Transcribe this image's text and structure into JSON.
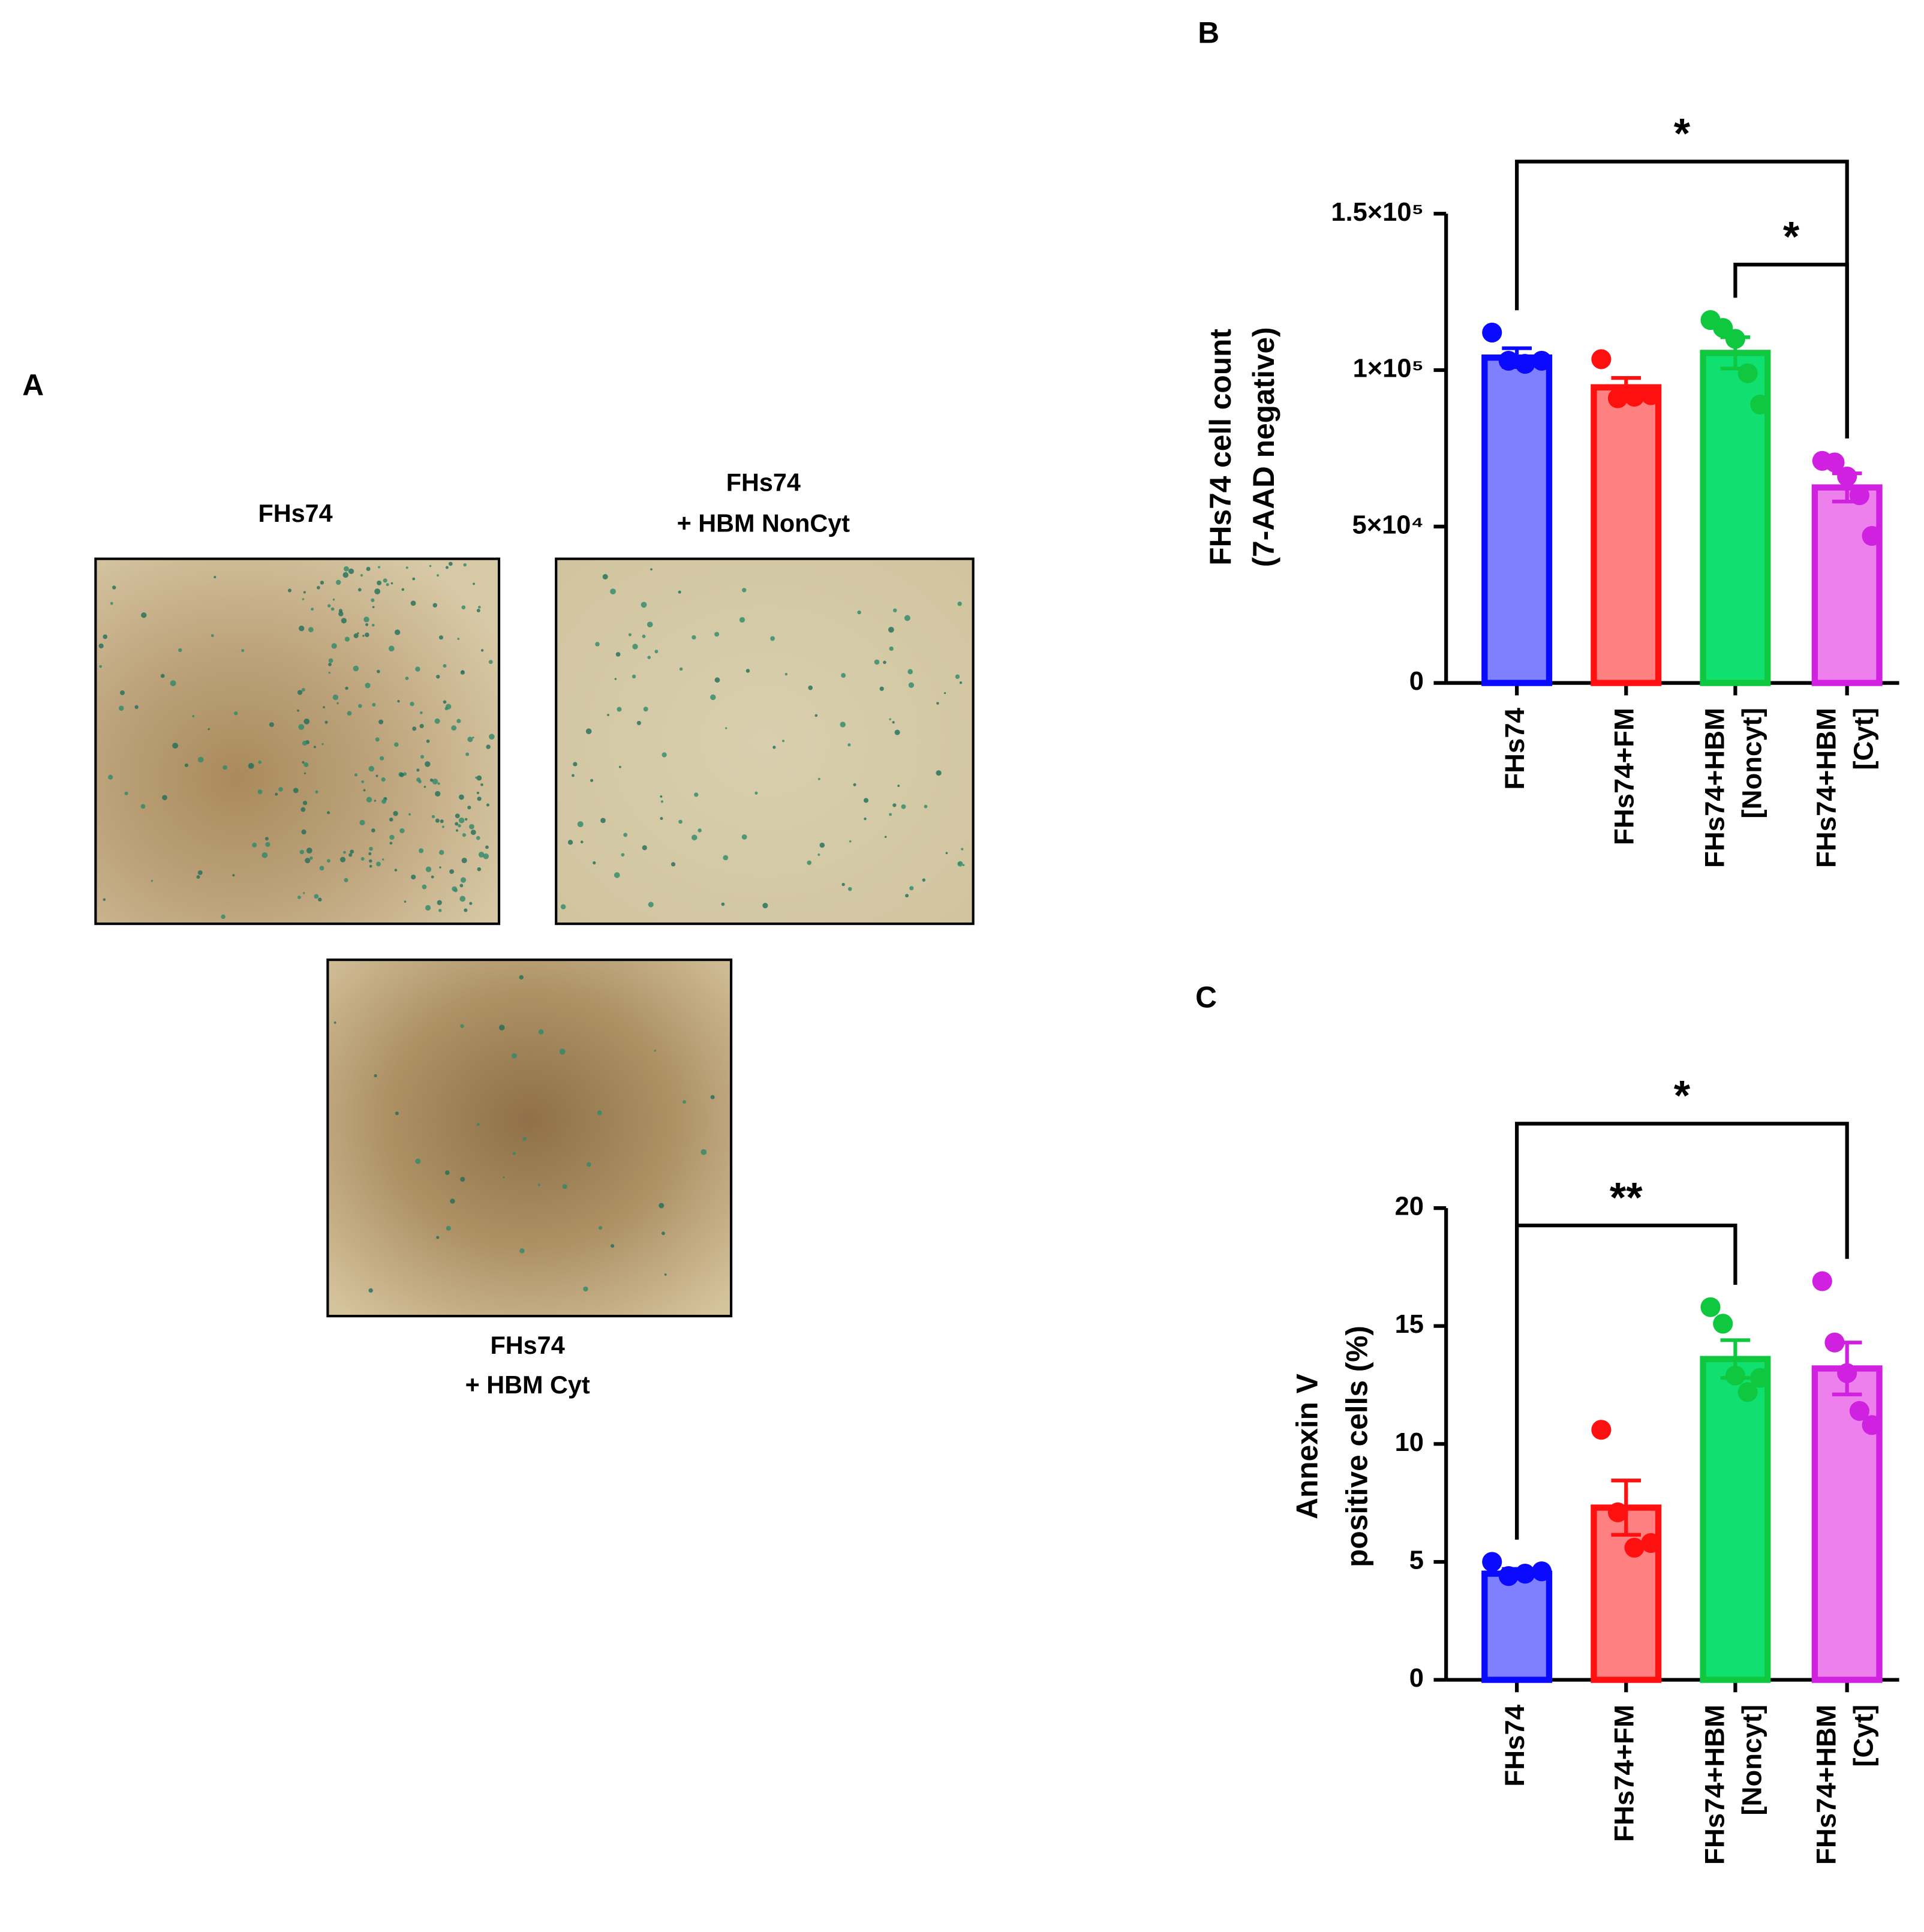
{
  "panel_a": {
    "label": "A",
    "captions": [
      [
        "FHs74"
      ],
      [
        "FHs74",
        "+ HBM NonCyt"
      ],
      [
        "FHs74",
        "+ HBM Cyt"
      ]
    ]
  },
  "chart_data": [
    {
      "type": "bar",
      "panel_label": "B",
      "ylabel": [
        "FHs74 cell count",
        "(7-AAD negative)"
      ],
      "categories": [
        [
          "FHs74"
        ],
        [
          "FHs74+FM"
        ],
        [
          "FHs74+HBM",
          "[Noncyt]"
        ],
        [
          "FHs74+HBM",
          "[Cyt]"
        ]
      ],
      "values": [
        104000,
        94500,
        105500,
        62500
      ],
      "errors": [
        3000,
        3000,
        5000,
        4500
      ],
      "points": [
        [
          112000,
          103000,
          102000,
          103000
        ],
        [
          103500,
          91000,
          91500,
          92000
        ],
        [
          116000,
          113500,
          110000,
          99000,
          89000
        ],
        [
          71000,
          70500,
          66000,
          60000,
          47000
        ]
      ],
      "colors": [
        "#0a0aff",
        "#ff1010",
        "#10c840",
        "#d020e0"
      ],
      "fill_colors": [
        "#7f80ff",
        "#ff8080",
        "#10e070",
        "#ee80ee"
      ],
      "ylim": [
        0,
        150000
      ],
      "yticks": [
        0,
        {
          "value": 50000,
          "label": "5×10⁴"
        },
        {
          "value": 100000,
          "label": "1×10⁵"
        },
        {
          "value": 150000,
          "label": "1.5×10⁵"
        }
      ],
      "comparisons": [
        {
          "label": "*",
          "groups": [
            0,
            3
          ]
        },
        {
          "label": "*",
          "groups": [
            2,
            3
          ]
        }
      ]
    },
    {
      "type": "bar",
      "panel_label": "C",
      "ylabel": [
        "Annexin V",
        "positive cells (%)"
      ],
      "categories": [
        [
          "FHs74"
        ],
        [
          "FHs74+FM"
        ],
        [
          "FHs74+HBM",
          "[Noncyt]"
        ],
        [
          "FHs74+HBM",
          "[Cyt]"
        ]
      ],
      "values": [
        4.5,
        7.3,
        13.6,
        13.2
      ],
      "errors": [
        0.2,
        1.15,
        0.8,
        1.1
      ],
      "points": [
        [
          5.0,
          4.4,
          4.5,
          4.6
        ],
        [
          10.6,
          7.1,
          5.6,
          5.8
        ],
        [
          15.8,
          15.1,
          12.9,
          12.2,
          12.8
        ],
        [
          16.9,
          14.3,
          13.0,
          11.4,
          10.8
        ]
      ],
      "colors": [
        "#0a0aff",
        "#ff1010",
        "#10c840",
        "#d020e0"
      ],
      "fill_colors": [
        "#7f80ff",
        "#ff8080",
        "#10e070",
        "#ee80ee"
      ],
      "ylim": [
        0,
        20
      ],
      "yticks": [
        0,
        5,
        10,
        15,
        20
      ],
      "comparisons": [
        {
          "label": "*",
          "groups": [
            0,
            3
          ]
        },
        {
          "label": "**",
          "groups": [
            0,
            2
          ]
        }
      ]
    }
  ]
}
